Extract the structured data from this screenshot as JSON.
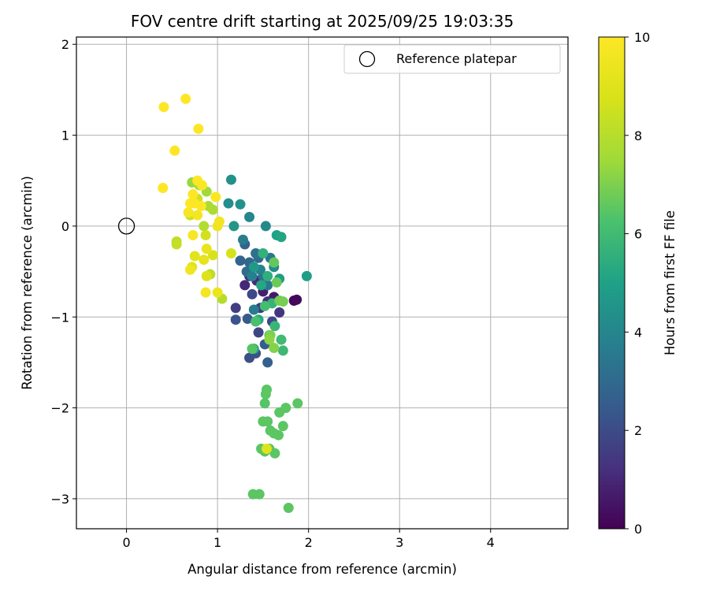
{
  "chart_data": {
    "type": "scatter",
    "title": "FOV centre drift starting at 2025/09/25 19:03:35",
    "xlabel": "Angular distance from reference (arcmin)",
    "ylabel": "Rotation from reference (arcmin)",
    "xlim": [
      -0.55,
      4.85
    ],
    "ylim": [
      -3.33,
      2.08
    ],
    "xticks": [
      0,
      1,
      2,
      3,
      4
    ],
    "xtick_labels": [
      "0",
      "1",
      "2",
      "3",
      "4"
    ],
    "yticks": [
      2,
      1,
      0,
      -1,
      -2,
      -3
    ],
    "ytick_labels": [
      "2",
      "1",
      "0",
      "−1",
      "−2",
      "−3"
    ],
    "grid": true,
    "legend": {
      "position": "top-right",
      "entries": [
        "Reference platepar"
      ]
    },
    "reference_point": {
      "x": 0,
      "y": 0,
      "label": "Reference platepar"
    },
    "colorbar": {
      "label": "Hours from first FF file",
      "range": [
        0,
        10
      ],
      "ticks": [
        0,
        2,
        4,
        6,
        8,
        10
      ],
      "tick_labels": [
        "0",
        "2",
        "4",
        "6",
        "8",
        "10"
      ],
      "colormap": "viridis"
    },
    "points": [
      {
        "x": 1.84,
        "y": -0.82,
        "h": 0.1
      },
      {
        "x": 1.87,
        "y": -0.81,
        "h": 0.2
      },
      {
        "x": 1.62,
        "y": -0.78,
        "h": 0.6
      },
      {
        "x": 1.5,
        "y": -0.72,
        "h": 0.8
      },
      {
        "x": 1.3,
        "y": -0.65,
        "h": 1.0
      },
      {
        "x": 1.43,
        "y": -0.6,
        "h": 1.1
      },
      {
        "x": 1.55,
        "y": -0.83,
        "h": 1.2
      },
      {
        "x": 1.68,
        "y": -0.95,
        "h": 1.3
      },
      {
        "x": 1.35,
        "y": -0.55,
        "h": 1.4
      },
      {
        "x": 1.47,
        "y": -0.9,
        "h": 1.5
      },
      {
        "x": 1.2,
        "y": -0.9,
        "h": 1.6
      },
      {
        "x": 1.45,
        "y": -1.17,
        "h": 1.8
      },
      {
        "x": 1.38,
        "y": -0.75,
        "h": 1.9
      },
      {
        "x": 1.6,
        "y": -1.05,
        "h": 2.0
      },
      {
        "x": 1.35,
        "y": -1.45,
        "h": 2.1
      },
      {
        "x": 1.42,
        "y": -1.4,
        "h": 2.2
      },
      {
        "x": 1.2,
        "y": -1.03,
        "h": 2.3
      },
      {
        "x": 1.33,
        "y": -1.02,
        "h": 2.4
      },
      {
        "x": 1.52,
        "y": -1.3,
        "h": 2.5
      },
      {
        "x": 1.55,
        "y": -1.5,
        "h": 2.6
      },
      {
        "x": 1.3,
        "y": -0.2,
        "h": 2.7
      },
      {
        "x": 1.25,
        "y": -0.38,
        "h": 2.8
      },
      {
        "x": 1.35,
        "y": -0.4,
        "h": 2.9
      },
      {
        "x": 1.45,
        "y": -0.35,
        "h": 3.0
      },
      {
        "x": 1.32,
        "y": -0.5,
        "h": 3.1
      },
      {
        "x": 1.42,
        "y": -0.3,
        "h": 3.2
      },
      {
        "x": 1.5,
        "y": -0.55,
        "h": 3.3
      },
      {
        "x": 1.58,
        "y": -0.35,
        "h": 3.4
      },
      {
        "x": 1.55,
        "y": -0.65,
        "h": 3.5
      },
      {
        "x": 1.4,
        "y": -0.92,
        "h": 3.6
      },
      {
        "x": 1.28,
        "y": -0.15,
        "h": 3.7
      },
      {
        "x": 1.38,
        "y": -0.55,
        "h": 3.8
      },
      {
        "x": 1.47,
        "y": -0.48,
        "h": 3.9
      },
      {
        "x": 1.35,
        "y": 0.1,
        "h": 4.0
      },
      {
        "x": 1.53,
        "y": 0.0,
        "h": 4.1
      },
      {
        "x": 1.62,
        "y": -0.45,
        "h": 4.2
      },
      {
        "x": 1.12,
        "y": 0.25,
        "h": 4.3
      },
      {
        "x": 1.15,
        "y": 0.51,
        "h": 4.4
      },
      {
        "x": 1.25,
        "y": 0.24,
        "h": 4.5
      },
      {
        "x": 1.18,
        "y": 0.0,
        "h": 4.6
      },
      {
        "x": 1.4,
        "y": -0.45,
        "h": 4.7
      },
      {
        "x": 1.68,
        "y": -0.58,
        "h": 4.8
      },
      {
        "x": 1.98,
        "y": -0.55,
        "h": 4.9
      },
      {
        "x": 1.65,
        "y": -0.1,
        "h": 5.0
      },
      {
        "x": 1.7,
        "y": -0.12,
        "h": 5.1
      },
      {
        "x": 1.48,
        "y": -0.65,
        "h": 5.2
      },
      {
        "x": 1.45,
        "y": -1.03,
        "h": 5.3
      },
      {
        "x": 1.4,
        "y": -1.35,
        "h": 5.4
      },
      {
        "x": 1.55,
        "y": -0.55,
        "h": 5.5
      },
      {
        "x": 1.5,
        "y": -0.3,
        "h": 5.6
      },
      {
        "x": 1.6,
        "y": -0.85,
        "h": 5.7
      },
      {
        "x": 1.63,
        "y": -1.1,
        "h": 5.8
      },
      {
        "x": 1.72,
        "y": -1.37,
        "h": 5.9
      },
      {
        "x": 1.7,
        "y": -1.25,
        "h": 6.0
      },
      {
        "x": 1.52,
        "y": -0.88,
        "h": 6.1
      },
      {
        "x": 1.42,
        "y": -1.05,
        "h": 6.2
      },
      {
        "x": 1.57,
        "y": -1.2,
        "h": 6.3
      },
      {
        "x": 1.38,
        "y": -1.35,
        "h": 6.4
      },
      {
        "x": 1.52,
        "y": -1.95,
        "h": 6.4
      },
      {
        "x": 1.53,
        "y": -1.85,
        "h": 6.5
      },
      {
        "x": 1.54,
        "y": -1.8,
        "h": 6.5
      },
      {
        "x": 1.68,
        "y": -2.05,
        "h": 6.5
      },
      {
        "x": 1.75,
        "y": -2.0,
        "h": 6.5
      },
      {
        "x": 1.88,
        "y": -1.95,
        "h": 6.5
      },
      {
        "x": 1.5,
        "y": -2.15,
        "h": 6.5
      },
      {
        "x": 1.55,
        "y": -2.15,
        "h": 6.5
      },
      {
        "x": 1.58,
        "y": -2.25,
        "h": 6.5
      },
      {
        "x": 1.62,
        "y": -2.28,
        "h": 6.5
      },
      {
        "x": 1.67,
        "y": -2.3,
        "h": 6.5
      },
      {
        "x": 1.72,
        "y": -2.2,
        "h": 6.5
      },
      {
        "x": 1.48,
        "y": -2.45,
        "h": 6.5
      },
      {
        "x": 1.52,
        "y": -2.48,
        "h": 6.5
      },
      {
        "x": 1.57,
        "y": -2.45,
        "h": 6.5
      },
      {
        "x": 1.63,
        "y": -2.5,
        "h": 6.5
      },
      {
        "x": 1.39,
        "y": -2.95,
        "h": 6.5
      },
      {
        "x": 1.46,
        "y": -2.95,
        "h": 6.5
      },
      {
        "x": 1.78,
        "y": -3.1,
        "h": 6.5
      },
      {
        "x": 1.62,
        "y": -0.4,
        "h": 6.6
      },
      {
        "x": 1.65,
        "y": -0.62,
        "h": 6.7
      },
      {
        "x": 1.68,
        "y": -0.82,
        "h": 6.8
      },
      {
        "x": 1.72,
        "y": -0.83,
        "h": 6.9
      },
      {
        "x": 1.58,
        "y": -1.2,
        "h": 7.0
      },
      {
        "x": 1.62,
        "y": -1.34,
        "h": 7.1
      },
      {
        "x": 1.57,
        "y": -1.25,
        "h": 7.2
      },
      {
        "x": 0.72,
        "y": 0.48,
        "h": 7.4
      },
      {
        "x": 0.88,
        "y": 0.38,
        "h": 7.5
      },
      {
        "x": 0.8,
        "y": 0.45,
        "h": 7.6
      },
      {
        "x": 0.9,
        "y": 0.22,
        "h": 7.7
      },
      {
        "x": 0.95,
        "y": 0.18,
        "h": 7.8
      },
      {
        "x": 0.85,
        "y": 0.0,
        "h": 7.9
      },
      {
        "x": 1.05,
        "y": -0.8,
        "h": 8.0
      },
      {
        "x": 0.92,
        "y": -0.53,
        "h": 8.1
      },
      {
        "x": 0.55,
        "y": -0.17,
        "h": 8.2
      },
      {
        "x": 0.55,
        "y": -0.2,
        "h": 8.3
      },
      {
        "x": 0.7,
        "y": 0.12,
        "h": 8.4
      },
      {
        "x": 0.78,
        "y": 0.3,
        "h": 8.5
      },
      {
        "x": 0.87,
        "y": -0.1,
        "h": 8.6
      },
      {
        "x": 1.15,
        "y": -0.3,
        "h": 8.7
      },
      {
        "x": 0.95,
        "y": -0.32,
        "h": 8.8
      },
      {
        "x": 0.88,
        "y": -0.55,
        "h": 8.9
      },
      {
        "x": 0.72,
        "y": -0.45,
        "h": 9.0
      },
      {
        "x": 0.75,
        "y": -0.33,
        "h": 9.1
      },
      {
        "x": 0.85,
        "y": -0.37,
        "h": 9.2
      },
      {
        "x": 0.88,
        "y": -0.25,
        "h": 9.3
      },
      {
        "x": 1.0,
        "y": -0.73,
        "h": 9.4
      },
      {
        "x": 1.0,
        "y": 0.0,
        "h": 9.5
      },
      {
        "x": 1.02,
        "y": 0.05,
        "h": 9.6
      },
      {
        "x": 0.7,
        "y": -0.48,
        "h": 9.6
      },
      {
        "x": 0.78,
        "y": 0.12,
        "h": 9.7
      },
      {
        "x": 0.87,
        "y": -0.73,
        "h": 9.7
      },
      {
        "x": 0.73,
        "y": -0.1,
        "h": 9.8
      },
      {
        "x": 0.68,
        "y": 0.15,
        "h": 9.8
      },
      {
        "x": 0.98,
        "y": 0.32,
        "h": 9.9
      },
      {
        "x": 0.83,
        "y": 0.45,
        "h": 9.9
      },
      {
        "x": 0.78,
        "y": 0.5,
        "h": 10.0
      },
      {
        "x": 0.73,
        "y": 0.35,
        "h": 10.0
      },
      {
        "x": 0.75,
        "y": 0.25,
        "h": 10.0
      },
      {
        "x": 0.7,
        "y": 0.25,
        "h": 10.0
      },
      {
        "x": 0.82,
        "y": 0.22,
        "h": 10.0
      },
      {
        "x": 0.4,
        "y": 0.42,
        "h": 10.0
      },
      {
        "x": 0.53,
        "y": 0.83,
        "h": 10.0
      },
      {
        "x": 0.41,
        "y": 1.31,
        "h": 10.0
      },
      {
        "x": 0.65,
        "y": 1.4,
        "h": 10.0
      },
      {
        "x": 0.79,
        "y": 1.07,
        "h": 10.0
      },
      {
        "x": 1.54,
        "y": -2.45,
        "h": 9.0
      }
    ]
  }
}
